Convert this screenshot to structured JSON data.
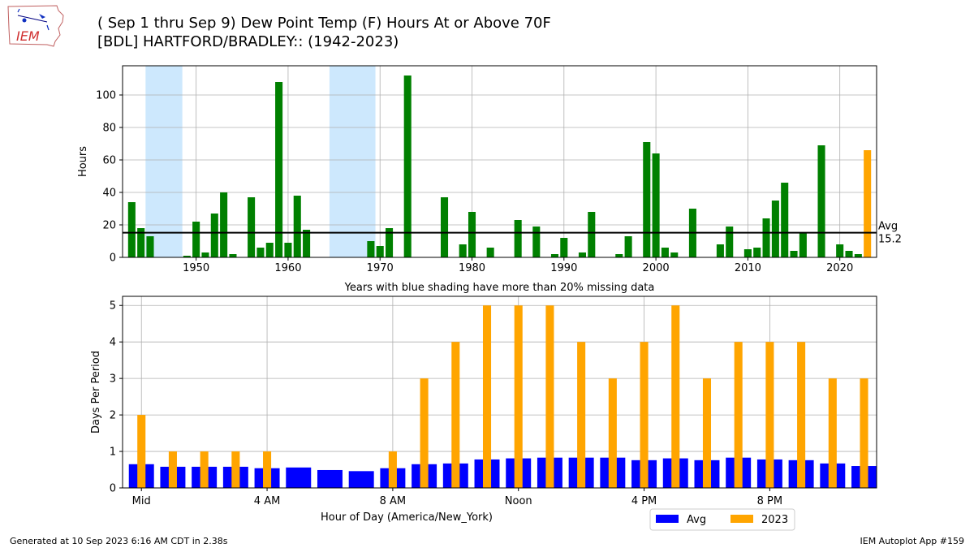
{
  "header": {
    "title_line1": "( Sep 1 thru Sep 9) Dew Point Temp (F) Hours At or Above 70F",
    "title_line2": "[BDL] HARTFORD/BRADLEY:: (1942-2023)",
    "logo_text": "IEM"
  },
  "footer": {
    "generated": "Generated at 10 Sep 2023 6:16 AM CDT in 2.38s",
    "app": "IEM Autoplot App #159"
  },
  "chart_data": [
    {
      "type": "bar",
      "ylabel": "Hours",
      "xlabel": "Years with blue shading have more than 20% missing data",
      "xlim": [
        1942,
        2024
      ],
      "ylim": [
        0,
        118
      ],
      "xticks": [
        1950,
        1960,
        1970,
        1980,
        1990,
        2000,
        2010,
        2020
      ],
      "yticks": [
        0,
        20,
        40,
        60,
        80,
        100
      ],
      "grid": true,
      "bar_color": "#008000",
      "highlight_color": "#ffa500",
      "shade_color": "#cde8fd",
      "shaded_ranges": [
        [
          1944.5,
          1948.5
        ],
        [
          1964.5,
          1969.5
        ]
      ],
      "avg": 15.2,
      "avg_label": "Avg",
      "avg_value_label": "15.2",
      "years": [
        1943,
        1944,
        1945,
        1949,
        1950,
        1951,
        1952,
        1953,
        1954,
        1956,
        1957,
        1958,
        1959,
        1960,
        1961,
        1962,
        1969,
        1970,
        1971,
        1973,
        1977,
        1979,
        1980,
        1982,
        1985,
        1987,
        1989,
        1990,
        1992,
        1993,
        1996,
        1997,
        1999,
        2000,
        2001,
        2002,
        2004,
        2007,
        2008,
        2010,
        2011,
        2012,
        2013,
        2014,
        2015,
        2016,
        2018,
        2020,
        2021,
        2022,
        2023
      ],
      "values": [
        34,
        18,
        13,
        1,
        22,
        3,
        27,
        40,
        2,
        37,
        6,
        9,
        108,
        9,
        38,
        17,
        10,
        7,
        18,
        112,
        37,
        8,
        28,
        6,
        23,
        19,
        2,
        12,
        3,
        28,
        2,
        13,
        71,
        64,
        6,
        3,
        30,
        8,
        19,
        5,
        6,
        24,
        35,
        46,
        4,
        15,
        69,
        8,
        4,
        2,
        66
      ],
      "highlight_year": 2023
    },
    {
      "type": "bar",
      "ylabel": "Days Per Period",
      "xlabel": "Hour of Day (America/New_York)",
      "xlim": [
        -0.6,
        23.4
      ],
      "ylim": [
        0,
        5.25
      ],
      "xticks": [
        0,
        4,
        8,
        12,
        16,
        20
      ],
      "xtick_labels": [
        "Mid",
        "4 AM",
        "8 AM",
        "Noon",
        "4 PM",
        "8 PM"
      ],
      "yticks": [
        0,
        1,
        2,
        3,
        4,
        5
      ],
      "grid": true,
      "legend_position": "lower-right-outside",
      "series": [
        {
          "name": "Avg",
          "color": "#0000ff",
          "values": [
            0.65,
            0.58,
            0.58,
            0.58,
            0.54,
            0.56,
            0.49,
            0.46,
            0.54,
            0.65,
            0.67,
            0.78,
            0.81,
            0.83,
            0.83,
            0.83,
            0.76,
            0.81,
            0.76,
            0.83,
            0.78,
            0.76,
            0.67,
            0.6
          ]
        },
        {
          "name": "2023",
          "color": "#ffa500",
          "values": [
            2,
            1,
            1,
            1,
            1,
            0,
            0,
            0,
            1,
            3,
            4,
            5,
            5,
            5,
            4,
            3,
            4,
            5,
            3,
            4,
            4,
            4,
            3,
            3
          ]
        }
      ]
    }
  ]
}
